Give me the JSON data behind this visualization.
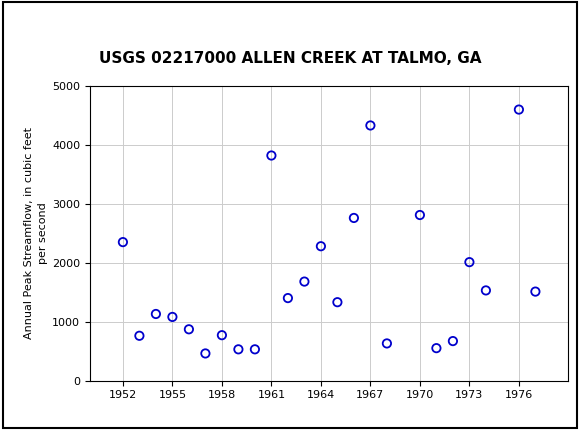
{
  "title": "USGS 02217000 ALLEN CREEK AT TALMO, GA",
  "ylabel": "Annual Peak Streamflow, in cubic feet\nper second",
  "xlabel": "",
  "years": [
    1952,
    1953,
    1954,
    1955,
    1956,
    1957,
    1958,
    1959,
    1960,
    1961,
    1962,
    1963,
    1964,
    1965,
    1966,
    1967,
    1968,
    1970,
    1971,
    1972,
    1973,
    1974,
    1976,
    1977
  ],
  "values": [
    2350,
    760,
    1130,
    1080,
    870,
    460,
    770,
    530,
    530,
    3820,
    1400,
    1680,
    2280,
    1330,
    2760,
    4330,
    630,
    2810,
    550,
    670,
    2010,
    1530,
    4600,
    1510
  ],
  "xlim": [
    1950,
    1979
  ],
  "ylim": [
    0,
    5000
  ],
  "xticks": [
    1952,
    1955,
    1958,
    1961,
    1964,
    1967,
    1970,
    1973,
    1976
  ],
  "yticks": [
    0,
    1000,
    2000,
    3000,
    4000,
    5000
  ],
  "marker_color": "#0000CC",
  "marker_size": 6,
  "marker_facecolor": "none",
  "marker_linewidth": 1.3,
  "grid_color": "#cccccc",
  "bg_color": "#ffffff",
  "header_bg_color": "#005C2E",
  "title_fontsize": 11,
  "tick_fontsize": 8,
  "ylabel_fontsize": 8,
  "usgs_text_color": "#ffffff",
  "border_color": "#000000"
}
